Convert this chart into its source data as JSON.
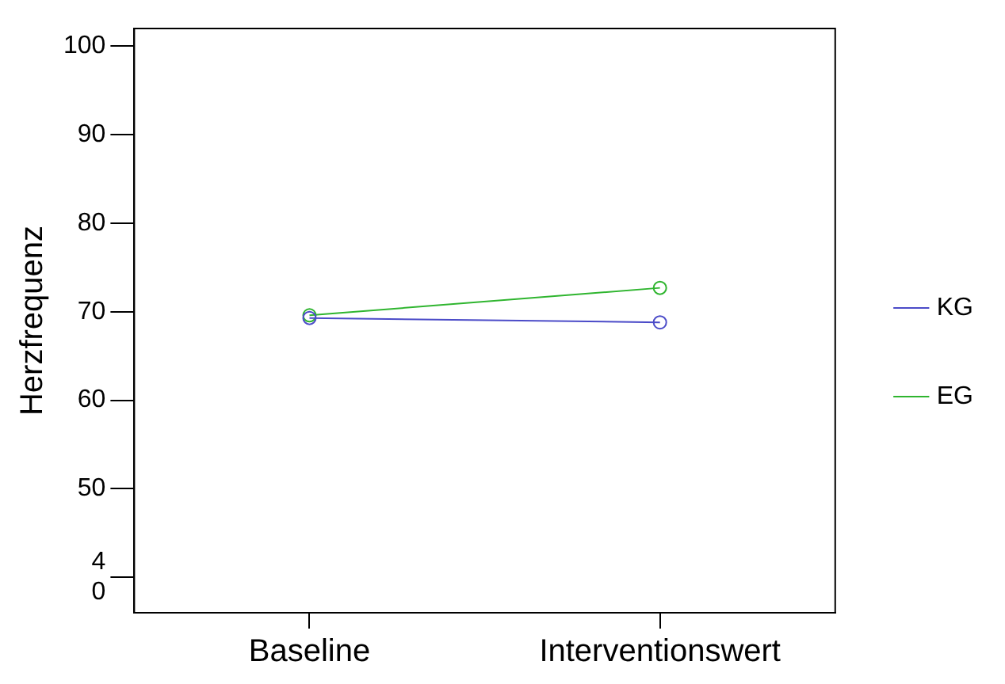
{
  "chart_data": {
    "type": "line",
    "ylabel": "Herzfrequenz",
    "categories": [
      "Baseline",
      "Interventionswert"
    ],
    "series": [
      {
        "name": "KG",
        "color": "#4b4bc8",
        "values": [
          69.3,
          68.8
        ]
      },
      {
        "name": "EG",
        "color": "#2fb52f",
        "values": [
          69.6,
          72.7
        ]
      }
    ],
    "ylim": [
      36,
      102
    ],
    "yticks": [
      {
        "value": 40,
        "label": "4\n0"
      },
      50,
      60,
      70,
      80,
      90,
      100
    ],
    "grid": false,
    "legend": "right",
    "marker": "circle",
    "line_style": "solid"
  }
}
